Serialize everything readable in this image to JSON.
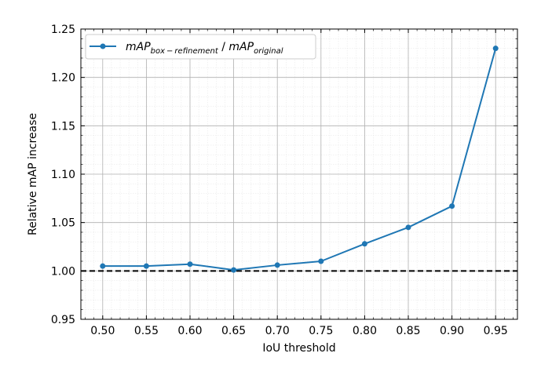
{
  "chart_data": {
    "type": "line",
    "xlabel": "IoU threshold",
    "ylabel": "Relative mAP increase",
    "x": [
      0.5,
      0.55,
      0.6,
      0.65,
      0.7,
      0.75,
      0.8,
      0.85,
      0.9,
      0.95
    ],
    "x_tick_labels": [
      "0.50",
      "0.55",
      "0.60",
      "0.65",
      "0.70",
      "0.75",
      "0.80",
      "0.85",
      "0.90",
      "0.95"
    ],
    "y_tick_labels": [
      "0.95",
      "1.00",
      "1.05",
      "1.10",
      "1.15",
      "1.20",
      "1.25"
    ],
    "xlim": [
      0.475,
      0.975
    ],
    "ylim": [
      0.95,
      1.25
    ],
    "grid": true,
    "minor_grid": true,
    "legend_position": "top-left",
    "series": [
      {
        "legend_base_1": "mAP",
        "legend_sub_1": "box − refinement",
        "legend_separator": " / ",
        "legend_base_2": "mAP",
        "legend_sub_2": "original",
        "color": "#1f77b4",
        "values": [
          1.005,
          1.005,
          1.007,
          1.001,
          1.006,
          1.01,
          1.028,
          1.045,
          1.067,
          1.23
        ]
      }
    ],
    "reference_line": {
      "y": 1.0,
      "style": "dashed",
      "color": "#000000"
    }
  }
}
